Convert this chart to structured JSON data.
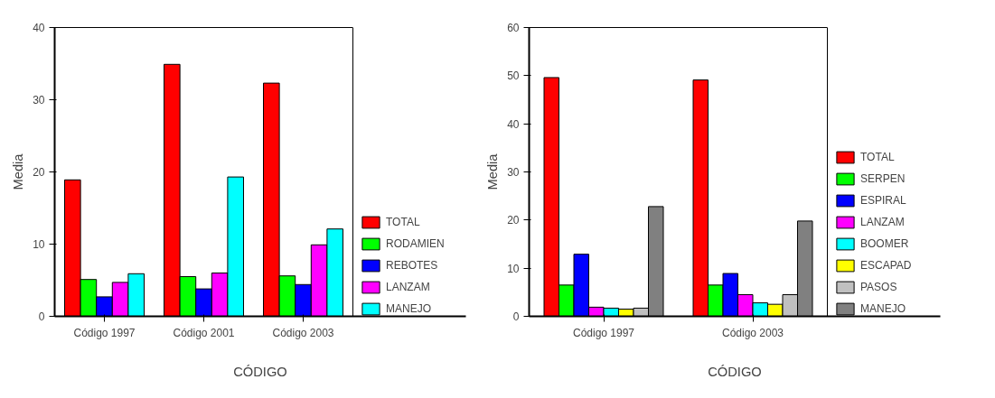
{
  "chart_data": [
    {
      "type": "bar",
      "xlabel": "CÓDIGO",
      "ylabel": "Media",
      "categories": [
        "Código 1997",
        "Código 2001",
        "Código 2003"
      ],
      "ylim": [
        0,
        40
      ],
      "yticks": [
        0,
        10,
        20,
        30,
        40
      ],
      "legend": "right",
      "grid": false,
      "series": [
        {
          "name": "TOTAL",
          "color": "#ff0000",
          "values": [
            18.9,
            34.9,
            32.3
          ]
        },
        {
          "name": "RODAMIEN",
          "color": "#00ff00",
          "values": [
            5.1,
            5.5,
            5.6
          ]
        },
        {
          "name": "REBOTES",
          "color": "#0000ff",
          "values": [
            2.7,
            3.8,
            4.4
          ]
        },
        {
          "name": "LANZAM",
          "color": "#ff00ff",
          "values": [
            4.7,
            6.0,
            9.9
          ]
        },
        {
          "name": "MANEJO",
          "color": "#00ffff",
          "values": [
            5.9,
            19.3,
            12.1
          ]
        }
      ]
    },
    {
      "type": "bar",
      "xlabel": "CÓDIGO",
      "ylabel": "Media",
      "categories": [
        "Código 1997",
        "Código 2003"
      ],
      "ylim": [
        0,
        60
      ],
      "yticks": [
        0,
        10,
        20,
        30,
        40,
        50,
        60
      ],
      "legend": "right",
      "grid": false,
      "series": [
        {
          "name": "TOTAL",
          "color": "#ff0000",
          "values": [
            49.6,
            49.1
          ]
        },
        {
          "name": "SERPEN",
          "color": "#00ff00",
          "values": [
            6.5,
            6.5
          ]
        },
        {
          "name": "ESPIRAL",
          "color": "#0000ff",
          "values": [
            12.9,
            8.9
          ]
        },
        {
          "name": "LANZAM",
          "color": "#ff00ff",
          "values": [
            1.9,
            4.5
          ]
        },
        {
          "name": "BOOMER",
          "color": "#00ffff",
          "values": [
            1.7,
            2.8
          ]
        },
        {
          "name": "ESCAPAD",
          "color": "#ffff00",
          "values": [
            1.5,
            2.5
          ]
        },
        {
          "name": "PASOS",
          "color": "#c0c0c0",
          "values": [
            1.7,
            4.5
          ]
        },
        {
          "name": "MANEJO",
          "color": "#808080",
          "values": [
            22.8,
            19.8
          ]
        }
      ]
    }
  ]
}
